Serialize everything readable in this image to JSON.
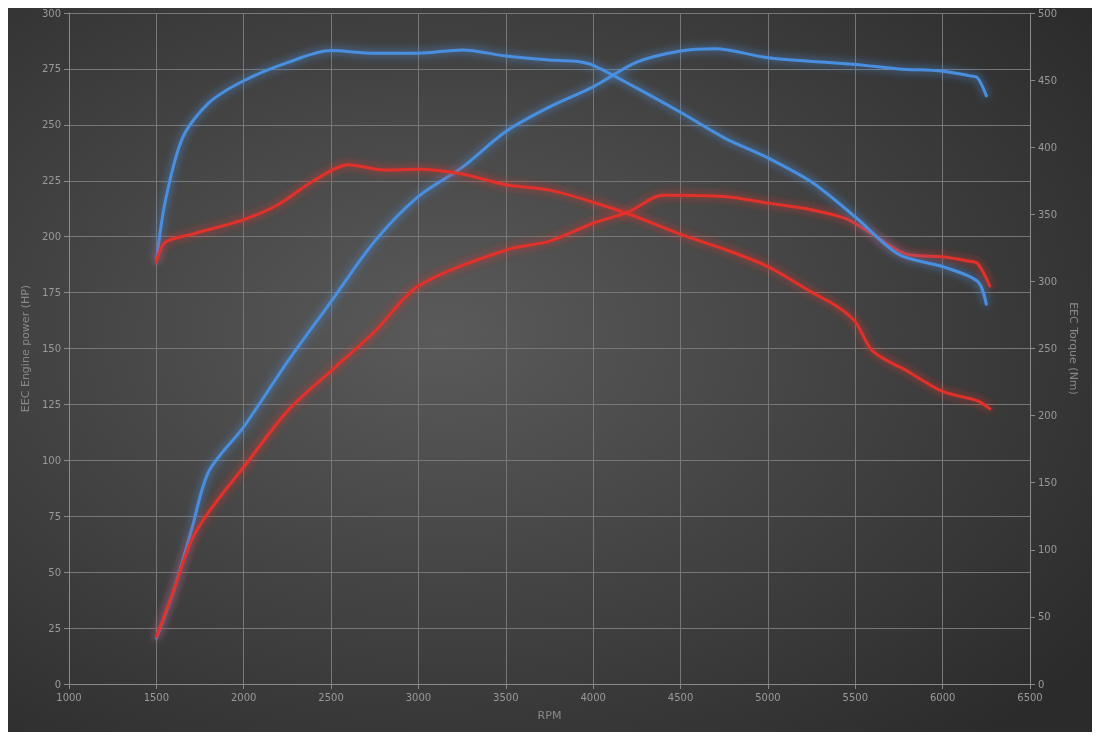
{
  "chart_data": {
    "type": "line",
    "xlabel": "RPM",
    "ylabel": "EEC Engine power (HP)",
    "y2label": "EEC Torque (Nm)",
    "xlim": [
      1000,
      6500
    ],
    "xticks": [
      1000,
      1500,
      2000,
      2500,
      3000,
      3500,
      4000,
      4500,
      5000,
      5500,
      6000,
      6500
    ],
    "ylim": [
      0,
      300
    ],
    "yticks": [
      0,
      25,
      50,
      75,
      100,
      125,
      150,
      175,
      200,
      225,
      250,
      275,
      300
    ],
    "y2lim": [
      0,
      500
    ],
    "y2ticks": [
      0,
      50,
      100,
      150,
      200,
      250,
      300,
      350,
      400,
      450,
      500
    ],
    "grid": true,
    "marker": "none",
    "line_style": "solid",
    "series": [
      {
        "color": "#4a8fe0",
        "x": [
          1500,
          1600,
          1700,
          1800,
          2000,
          2250,
          2500,
          2750,
          3000,
          3250,
          3500,
          3750,
          4000,
          4250,
          4500,
          4700,
          5000,
          5500,
          5750,
          6000,
          6150,
          6200,
          6250
        ],
        "values": [
          20.5,
          42,
          68.5,
          95,
          115,
          144,
          171,
          198,
          218,
          231,
          247,
          258,
          267,
          278,
          283,
          284,
          280,
          277,
          275,
          274,
          272,
          271,
          263
        ]
      },
      {
        "color": "#e0302a",
        "x": [
          1500,
          1600,
          1700,
          1800,
          2000,
          2250,
          2500,
          2750,
          3000,
          3500,
          3750,
          4000,
          4200,
          4400,
          4750,
          5000,
          5250,
          5450,
          5600,
          5800,
          6000,
          6150,
          6200,
          6270
        ],
        "values": [
          21,
          42,
          64,
          77,
          97,
          122,
          140,
          157.6,
          178,
          194,
          198,
          206,
          211,
          218.5,
          218,
          215,
          212,
          208,
          201,
          192,
          191,
          189,
          188,
          178
        ]
      },
      {
        "color": "#4a8fe0",
        "axis": "y2",
        "x": [
          1500,
          1550,
          1650,
          1800,
          2000,
          2250,
          2500,
          2750,
          3000,
          3250,
          3500,
          3750,
          3900,
          4000,
          4250,
          4500,
          4750,
          5000,
          5250,
          5500,
          5750,
          6000,
          6200,
          6250
        ],
        "values": [
          314.5,
          359,
          407,
          433,
          449.5,
          463,
          472,
          470,
          470,
          472.5,
          468,
          465,
          464,
          461,
          444,
          426,
          407,
          392,
          374,
          348,
          320,
          311,
          300,
          283
        ]
      },
      {
        "color": "#e0302a",
        "axis": "y2",
        "x": [
          1500,
          1550,
          1700,
          2000,
          2200,
          2400,
          2600,
          2800,
          3000,
          3250,
          3500,
          3750,
          4000,
          4250,
          4500,
          4750,
          5000,
          5250,
          5400,
          5500,
          5600,
          5800,
          6000,
          6200,
          6270
        ],
        "values": [
          314.5,
          329,
          335,
          346,
          357.5,
          375,
          387,
          383,
          383.5,
          380,
          372,
          368,
          359,
          348,
          335,
          324,
          311,
          292,
          281,
          270,
          248,
          233,
          218,
          211,
          205
        ]
      }
    ]
  }
}
